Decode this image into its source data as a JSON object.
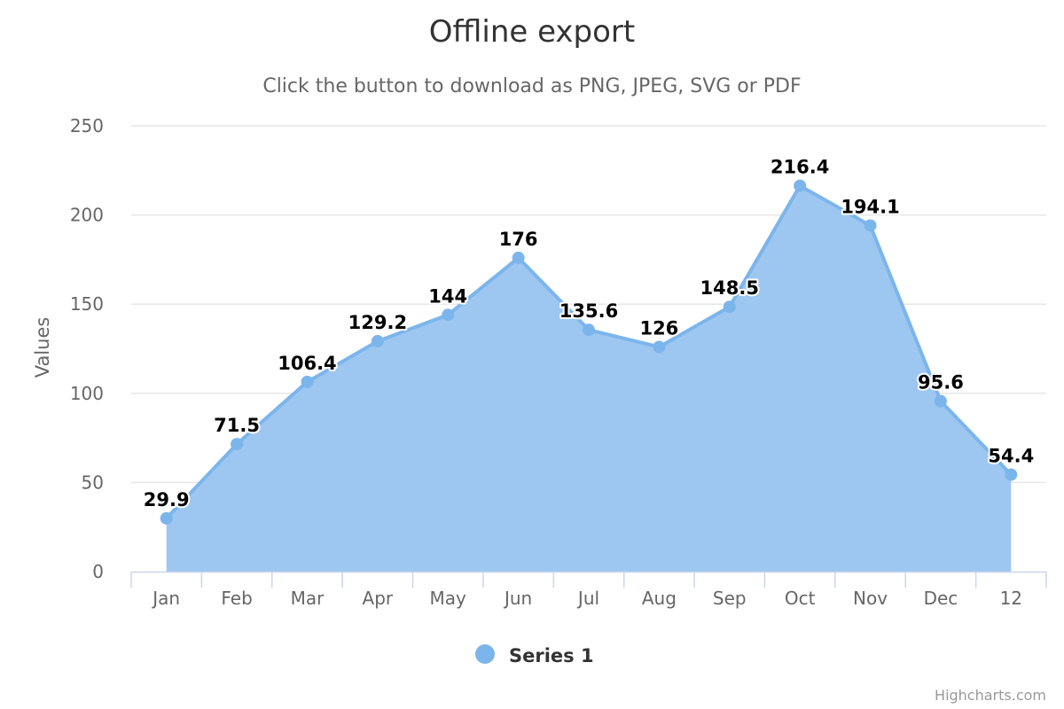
{
  "chart_data": {
    "type": "area",
    "title": "Offline export",
    "subtitle": "Click the button to download as PNG, JPEG, SVG or PDF",
    "categories": [
      "Jan",
      "Feb",
      "Mar",
      "Apr",
      "May",
      "Jun",
      "Jul",
      "Aug",
      "Sep",
      "Oct",
      "Nov",
      "Dec",
      "12"
    ],
    "series": [
      {
        "name": "Series 1",
        "values": [
          29.9,
          71.5,
          106.4,
          129.2,
          144,
          176,
          135.6,
          126,
          148.5,
          216.4,
          194.1,
          95.6,
          54.4
        ],
        "color": "#7cb5ec",
        "fill_color": "#9dc7f0"
      }
    ],
    "ylabel": "Values",
    "xlabel": "",
    "ylim": [
      0,
      250
    ],
    "yticks": [
      0,
      50,
      100,
      150,
      200,
      250
    ],
    "grid": true,
    "data_labels": true,
    "legend": "bottom-center"
  },
  "credits": "Highcharts.com"
}
